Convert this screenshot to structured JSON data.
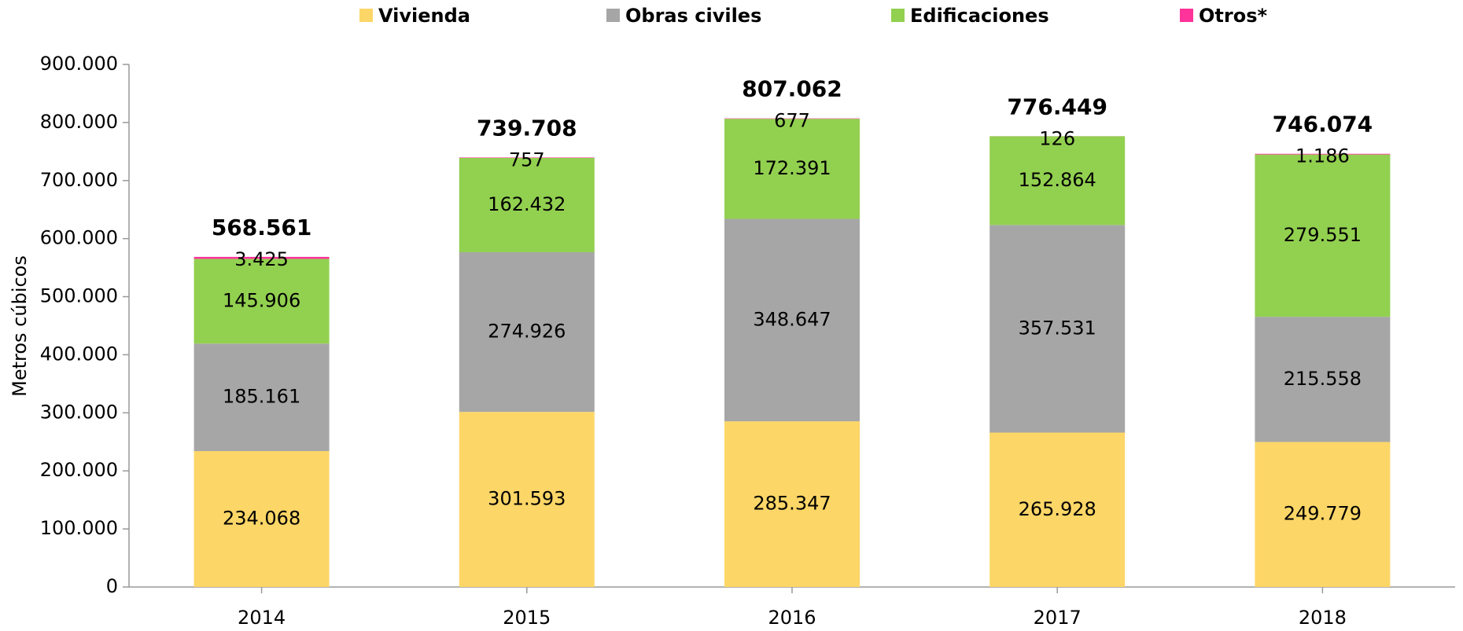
{
  "chart_data": {
    "type": "stacked_bar",
    "y_label": "Metros cúbicos",
    "categories": [
      "2014",
      "2015",
      "2016",
      "2017",
      "2018"
    ],
    "series": [
      {
        "name": "Vivienda",
        "color": "#fcd667",
        "values": [
          234068,
          301593,
          285347,
          265928,
          249779
        ],
        "value_labels": [
          "234.068",
          "301.593",
          "285.347",
          "265.928",
          "249.779"
        ]
      },
      {
        "name": "Obras civiles",
        "color": "#a6a6a6",
        "values": [
          185161,
          274926,
          348647,
          357531,
          215558
        ],
        "value_labels": [
          "185.161",
          "274.926",
          "348.647",
          "357.531",
          "215.558"
        ]
      },
      {
        "name": "Edificaciones",
        "color": "#92d050",
        "values": [
          145906,
          162432,
          172391,
          152864,
          279551
        ],
        "value_labels": [
          "145.906",
          "162.432",
          "172.391",
          "152.864",
          "279.551"
        ]
      },
      {
        "name": "Otros*",
        "color": "#ff3399",
        "values": [
          3425,
          757,
          677,
          126,
          1186
        ],
        "value_labels": [
          "3.425",
          "757",
          "677",
          "126",
          "1.186"
        ]
      }
    ],
    "totals": [
      {
        "value": 568561,
        "label": "568.561"
      },
      {
        "value": 739708,
        "label": "739.708"
      },
      {
        "value": 807062,
        "label": "807.062"
      },
      {
        "value": 776449,
        "label": "776.449"
      },
      {
        "value": 746074,
        "label": "746.074"
      }
    ],
    "ylim": [
      0,
      900000
    ],
    "yticks": [
      0,
      {
        "value": 100000,
        "label": "100.000"
      },
      {
        "value": 200000,
        "label": "200.000"
      },
      {
        "value": 300000,
        "label": "300.000"
      },
      {
        "value": 400000,
        "label": "400.000"
      },
      {
        "value": 500000,
        "label": "500.000"
      },
      {
        "value": 600000,
        "label": "600.000"
      },
      {
        "value": 700000,
        "label": "700.000"
      },
      {
        "value": 800000,
        "label": "800.000"
      },
      {
        "value": 900000,
        "label": "900.000"
      }
    ],
    "legend": "top",
    "grid": false
  }
}
